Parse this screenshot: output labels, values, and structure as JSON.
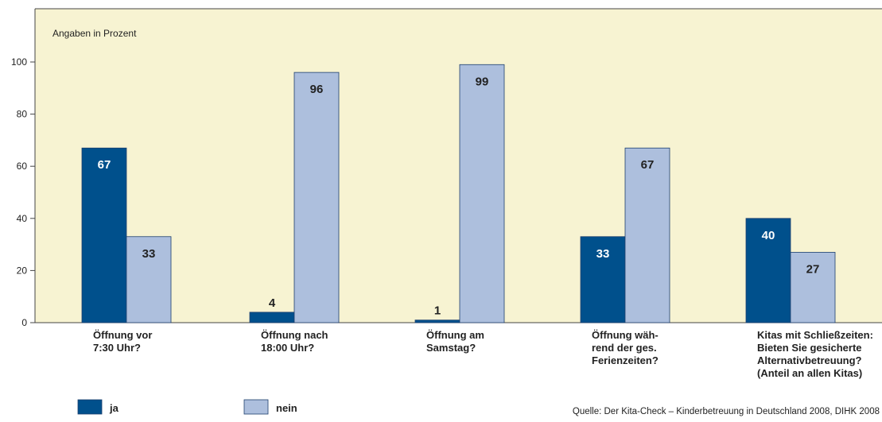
{
  "chart_data": {
    "type": "bar",
    "unit_label": "Angaben in Prozent",
    "categories": [
      [
        "Öffnung vor",
        "7:30 Uhr?"
      ],
      [
        "Öffnung nach",
        "18:00 Uhr?"
      ],
      [
        "Öffnung am",
        "Samstag?"
      ],
      [
        "Öffnung wäh-",
        "rend der ges.",
        "Ferienzeiten?"
      ],
      [
        "Kitas mit Schließzeiten:",
        "Bieten Sie gesicherte",
        "Alternativbetreuung?",
        "(Anteil an allen Kitas)"
      ]
    ],
    "series": [
      {
        "name": "ja",
        "color": "#00508c",
        "values": [
          67,
          4,
          1,
          33,
          40
        ]
      },
      {
        "name": "nein",
        "color": "#adbfdd",
        "values": [
          33,
          96,
          99,
          67,
          27
        ]
      }
    ],
    "ylim": [
      0,
      100
    ],
    "yticks": [
      0,
      20,
      40,
      60,
      80,
      100
    ],
    "plot_background": "#f7f3d2",
    "legend_position": "bottom-left",
    "source": "Quelle: Der Kita-Check – Kinderbetreuung in Deutschland 2008, DIHK 2008"
  }
}
